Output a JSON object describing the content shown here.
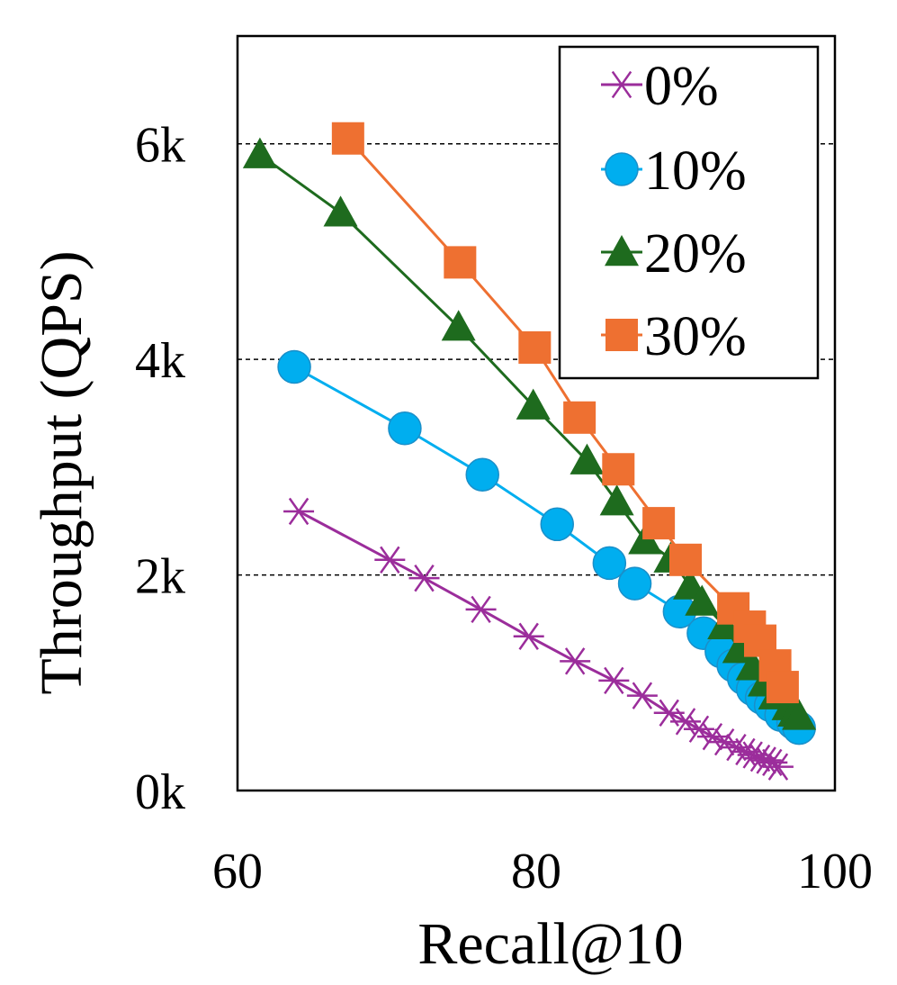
{
  "chart_data": {
    "type": "line",
    "title": "",
    "xlabel": "Recall@10",
    "ylabel": "Throughput (QPS)",
    "xlim": [
      60,
      100
    ],
    "ylim": [
      0,
      7000
    ],
    "xticks": [
      60,
      80,
      100
    ],
    "xtick_labels": [
      "60",
      "80",
      "100"
    ],
    "yticks": [
      0,
      2000,
      4000,
      6000
    ],
    "ytick_labels": [
      "0k",
      "2k",
      "4k",
      "6k"
    ],
    "grid": "horizontal-dashed",
    "legend_position": "top-right",
    "series": [
      {
        "name": "0%",
        "color": "#9b2d9b",
        "marker": "asterisk",
        "points": [
          [
            64.1,
            2590
          ],
          [
            70.2,
            2140
          ],
          [
            72.5,
            1970
          ],
          [
            76.3,
            1680
          ],
          [
            79.5,
            1430
          ],
          [
            82.6,
            1200
          ],
          [
            85.2,
            1020
          ],
          [
            87.1,
            880
          ],
          [
            88.9,
            720
          ],
          [
            90.0,
            640
          ],
          [
            90.9,
            570
          ],
          [
            91.8,
            500
          ],
          [
            92.6,
            450
          ],
          [
            93.4,
            400
          ],
          [
            94.0,
            360
          ],
          [
            94.5,
            330
          ],
          [
            95.0,
            300
          ],
          [
            95.4,
            280
          ],
          [
            95.8,
            260
          ],
          [
            96.2,
            220
          ]
        ]
      },
      {
        "name": "10%",
        "color": "#00aeef",
        "marker": "circle",
        "points": [
          [
            63.8,
            3930
          ],
          [
            71.2,
            3360
          ],
          [
            76.4,
            2930
          ],
          [
            81.4,
            2470
          ],
          [
            84.9,
            2110
          ],
          [
            86.6,
            1920
          ],
          [
            89.6,
            1660
          ],
          [
            91.2,
            1460
          ],
          [
            92.4,
            1290
          ],
          [
            93.2,
            1160
          ],
          [
            93.9,
            1040
          ],
          [
            94.5,
            940
          ],
          [
            95.1,
            860
          ],
          [
            95.7,
            790
          ],
          [
            96.4,
            700
          ],
          [
            97.2,
            630
          ],
          [
            97.6,
            580
          ]
        ]
      },
      {
        "name": "20%",
        "color": "#1e6b1e",
        "marker": "triangle",
        "points": [
          [
            61.5,
            5900
          ],
          [
            66.9,
            5360
          ],
          [
            74.8,
            4300
          ],
          [
            79.8,
            3570
          ],
          [
            83.4,
            3060
          ],
          [
            85.4,
            2680
          ],
          [
            87.3,
            2320
          ],
          [
            89.0,
            2150
          ],
          [
            90.3,
            1900
          ],
          [
            91.1,
            1750
          ],
          [
            92.6,
            1530
          ],
          [
            93.6,
            1310
          ],
          [
            94.5,
            1150
          ],
          [
            95.3,
            1000
          ],
          [
            96.0,
            880
          ],
          [
            96.9,
            780
          ],
          [
            97.3,
            720
          ],
          [
            97.6,
            690
          ]
        ]
      },
      {
        "name": "30%",
        "color": "#ee7031",
        "marker": "square",
        "points": [
          [
            67.4,
            6050
          ],
          [
            74.9,
            4900
          ],
          [
            79.9,
            4110
          ],
          [
            82.9,
            3460
          ],
          [
            85.5,
            2980
          ],
          [
            88.2,
            2480
          ],
          [
            90.0,
            2140
          ],
          [
            93.2,
            1690
          ],
          [
            94.3,
            1520
          ],
          [
            95.0,
            1390
          ],
          [
            96.0,
            1160
          ],
          [
            96.5,
            960
          ]
        ]
      }
    ]
  }
}
